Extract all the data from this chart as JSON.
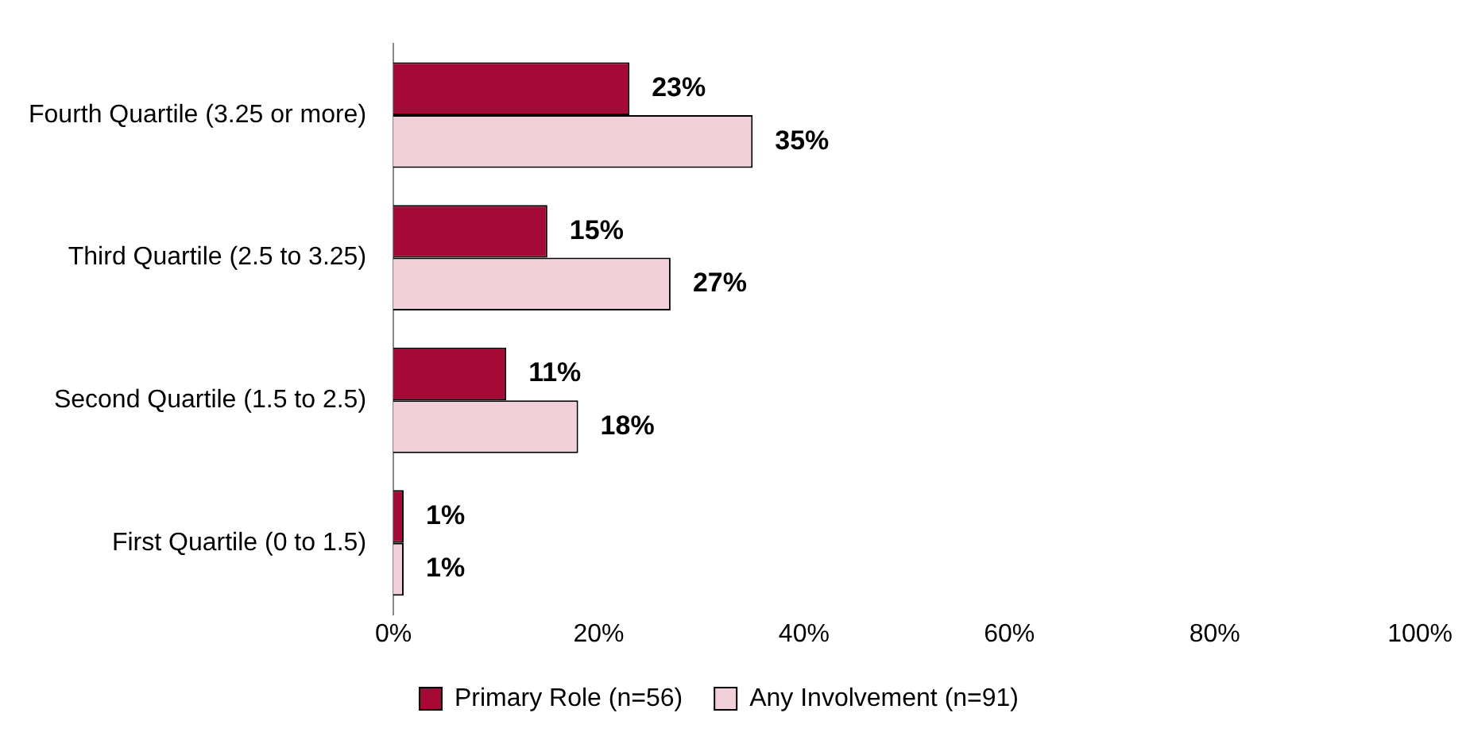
{
  "chart_data": {
    "type": "bar",
    "orientation": "horizontal",
    "categories": [
      "Fourth Quartile (3.25 or more)",
      "Third Quartile (2.5 to 3.25)",
      "Second Quartile (1.5 to 2.5)",
      "First Quartile (0 to 1.5)"
    ],
    "series": [
      {
        "name": "Primary Role (n=56)",
        "color": "#a50a37",
        "values": [
          23,
          15,
          11,
          1
        ],
        "value_labels": [
          "23%",
          "15%",
          "11%",
          "1%"
        ]
      },
      {
        "name": "Any Involvement (n=91)",
        "color": "#f2d0da",
        "values": [
          35,
          27,
          18,
          1
        ],
        "value_labels": [
          "35%",
          "27%",
          "18%",
          "1%"
        ]
      }
    ],
    "xlim": [
      0,
      100
    ],
    "xticks": [
      {
        "value": 0,
        "label": "0%"
      },
      {
        "value": 20,
        "label": "20%"
      },
      {
        "value": 40,
        "label": "40%"
      },
      {
        "value": 60,
        "label": "60%"
      },
      {
        "value": 80,
        "label": "80%"
      },
      {
        "value": 100,
        "label": "100%"
      }
    ],
    "grid": false,
    "legend": "bottom"
  }
}
